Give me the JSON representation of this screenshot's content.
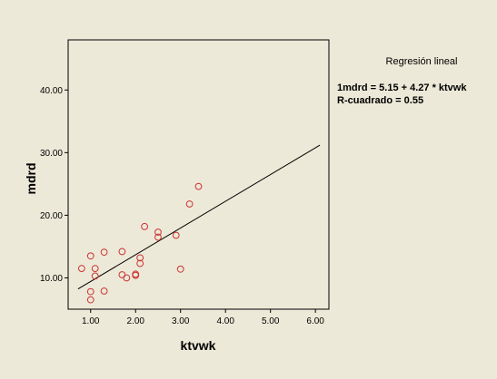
{
  "chart_data": {
    "type": "scatter",
    "xlabel": "ktvwk",
    "ylabel": "mdrd",
    "xlim": [
      0.5,
      6.3
    ],
    "ylim": [
      5.0,
      48.0
    ],
    "xticks": [
      "1.00",
      "2.00",
      "3.00",
      "4.00",
      "5.00",
      "6.00"
    ],
    "yticks": [
      "10.00",
      "20.00",
      "30.00",
      "40.00"
    ],
    "xtick_values": [
      1,
      2,
      3,
      4,
      5,
      6
    ],
    "ytick_values": [
      10,
      20,
      30,
      40
    ],
    "grid": false,
    "marker_color": "#cc3333",
    "line_color": "#000000",
    "background_color": "#ece9d8",
    "points": [
      {
        "x": 0.8,
        "y": 11.5
      },
      {
        "x": 1.0,
        "y": 13.5
      },
      {
        "x": 1.0,
        "y": 7.8
      },
      {
        "x": 1.0,
        "y": 6.5
      },
      {
        "x": 1.1,
        "y": 11.5
      },
      {
        "x": 1.1,
        "y": 10.3
      },
      {
        "x": 1.3,
        "y": 14.1
      },
      {
        "x": 1.3,
        "y": 7.9
      },
      {
        "x": 1.7,
        "y": 14.2
      },
      {
        "x": 1.7,
        "y": 10.5
      },
      {
        "x": 1.8,
        "y": 10.0
      },
      {
        "x": 2.0,
        "y": 10.6
      },
      {
        "x": 2.0,
        "y": 10.4
      },
      {
        "x": 2.1,
        "y": 13.2
      },
      {
        "x": 2.1,
        "y": 12.3
      },
      {
        "x": 2.2,
        "y": 18.2
      },
      {
        "x": 2.5,
        "y": 17.3
      },
      {
        "x": 2.5,
        "y": 16.5
      },
      {
        "x": 2.9,
        "y": 16.8
      },
      {
        "x": 3.0,
        "y": 11.4
      },
      {
        "x": 3.2,
        "y": 21.8
      },
      {
        "x": 3.4,
        "y": 24.6
      }
    ],
    "fit_line": {
      "x_start": 0.72,
      "x_end": 6.1,
      "intercept": 5.15,
      "slope": 4.27
    },
    "legend_title": "Regresión lineal",
    "annotations": [
      "1mdrd = 5.15 + 4.27 * ktvwk",
      "R-cuadrado = 0.55"
    ]
  }
}
